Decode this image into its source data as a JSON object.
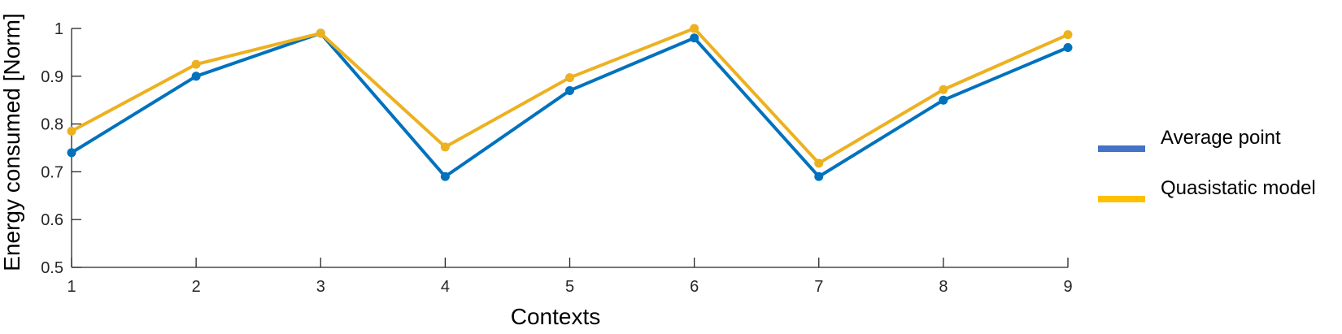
{
  "chart_data": {
    "type": "line",
    "title": "",
    "xlabel": "Contexts",
    "ylabel": "Energy consumed [Norm]",
    "x": [
      1,
      2,
      3,
      4,
      5,
      6,
      7,
      8,
      9
    ],
    "xticks": [
      "1",
      "2",
      "3",
      "4",
      "5",
      "6",
      "7",
      "8",
      "9"
    ],
    "yticks": [
      "0.5",
      "0.6",
      "0.7",
      "0.8",
      "0.9",
      "1"
    ],
    "xlim": [
      1,
      9
    ],
    "ylim": [
      0.5,
      1.0
    ],
    "grid": false,
    "legend_position": "right",
    "series": [
      {
        "name": "Average point",
        "color": "#0072BD",
        "values": [
          0.74,
          0.9,
          0.99,
          0.69,
          0.87,
          0.98,
          0.69,
          0.85,
          0.96
        ]
      },
      {
        "name": "Quasistatic model",
        "color": "#EDB120",
        "values": [
          0.785,
          0.925,
          0.99,
          0.752,
          0.897,
          1.0,
          0.718,
          0.872,
          0.987
        ]
      }
    ],
    "legend_colors": [
      "#4472C4",
      "#FFC000"
    ]
  }
}
